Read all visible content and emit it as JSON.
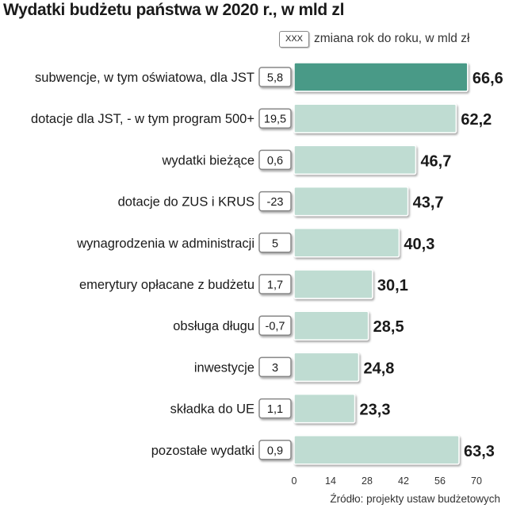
{
  "source": "Źródło: projekty ustaw budżetowych",
  "chart_data": {
    "type": "bar",
    "orientation": "horizontal",
    "title": "Wydatki budżetu państwa w 2020 r., w mld zl",
    "legend_box_label": "XXX",
    "legend_label": "zmiana rok do roku, w mld zł",
    "categories": [
      "subwencje, w tym oświatowa, dla JST",
      "dotacje dla JST, - w tym program 500+",
      "wydatki bieżące",
      "dotacje do ZUS i KRUS",
      "wynagrodzenia w administracji",
      "emerytury opłacane z budżetu",
      "obsługa długu",
      "inwestycje",
      "składka do UE",
      "pozostałe wydatki"
    ],
    "values": [
      66.6,
      62.2,
      46.7,
      43.7,
      40.3,
      30.1,
      28.5,
      24.8,
      23.3,
      63.3
    ],
    "value_labels": [
      "66,6",
      "62,2",
      "46,7",
      "43,7",
      "40,3",
      "30,1",
      "28,5",
      "24,8",
      "23,3",
      "63,3"
    ],
    "yoy_change_labels": [
      "5,8",
      "19,5",
      "0,6",
      "-23",
      "5",
      "1,7",
      "-0,7",
      "3",
      "1,1",
      "0,9"
    ],
    "highlight_index": 0,
    "xlim": [
      0,
      70
    ],
    "xticks": [
      0,
      14,
      28,
      42,
      56,
      70
    ],
    "xtick_labels": [
      "0",
      "14",
      "28",
      "42",
      "56",
      "70"
    ],
    "grid": false,
    "colors": {
      "highlight_bar": "#4a9a87",
      "bar": "#bfdcd2",
      "bar_edge": "#ffffff",
      "box_border": "#888888"
    }
  }
}
